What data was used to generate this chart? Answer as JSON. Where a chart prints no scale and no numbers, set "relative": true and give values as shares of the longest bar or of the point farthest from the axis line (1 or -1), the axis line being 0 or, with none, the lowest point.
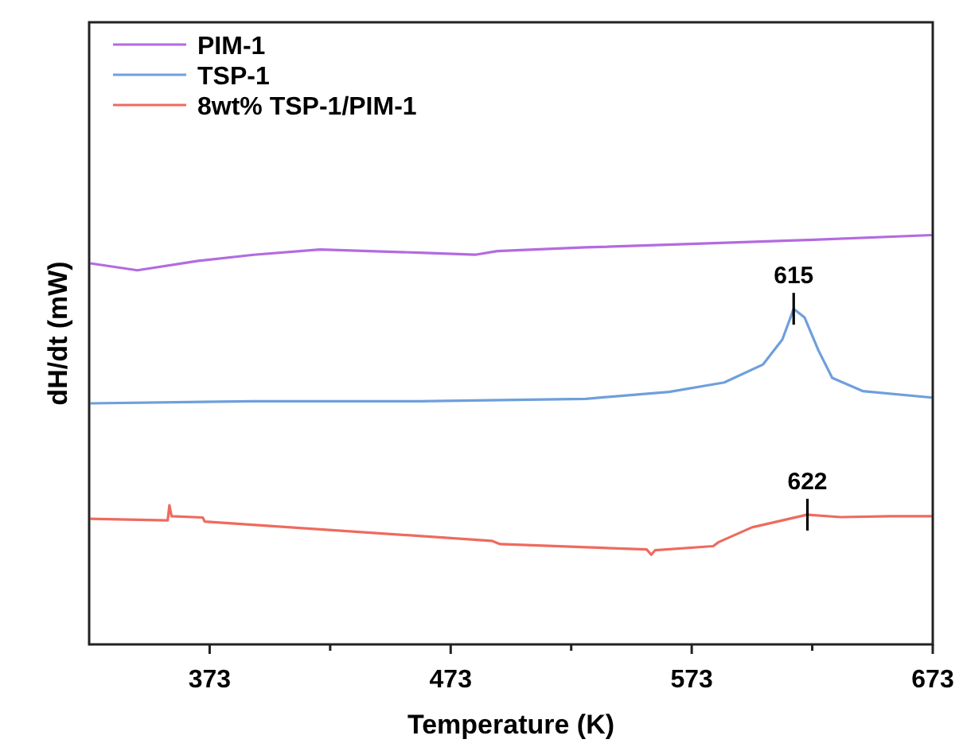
{
  "chart_data": {
    "type": "line",
    "xlabel": "Temperature (K)",
    "ylabel": "dH/dt (mW)",
    "relative": true,
    "xlim": [
      323,
      673
    ],
    "xticks": [
      373,
      {
        "value": 423,
        "label": null
      },
      473,
      {
        "value": 523,
        "label": null
      },
      573,
      {
        "value": 623,
        "label": null
      },
      673
    ],
    "legend": "top left",
    "grid": false,
    "marker": "none",
    "line_style": "solid",
    "series": [
      {
        "name": "PIM-1",
        "color": "#b36be0",
        "x": [
          323.5,
          343,
          368.3,
          391.3,
          418.8,
          460.1,
          483.1,
          492.3,
          529,
          575,
          621,
          672.6
        ],
        "values": [
          0.931,
          0.914,
          0.937,
          0.952,
          0.965,
          0.957,
          0.952,
          0.961,
          0.97,
          0.979,
          0.988,
          1
        ]
      },
      {
        "name": "TSP-1",
        "color": "#6f9fdc",
        "x": [
          323.5,
          391.3,
          460,
          529,
          563.6,
          586.5,
          602.6,
          610.6,
          615.3,
          619.8,
          625.6,
          631.3,
          643.9,
          672.6
        ],
        "values": [
          0.589,
          0.594,
          0.594,
          0.6,
          0.617,
          0.64,
          0.684,
          0.745,
          0.82,
          0.799,
          0.718,
          0.651,
          0.619,
          0.603
        ]
      },
      {
        "name": "8wt% TSP-1/PIM-1",
        "color": "#ef6a5e",
        "x": [
          323.5,
          355.6,
          356.3,
          357.2,
          370.1,
          371,
          490,
          493.5,
          554.3,
          556.2,
          557.8,
          581.9,
          584.2,
          598,
          621,
          634.8,
          655.5,
          672.6
        ],
        "values": [
          0.307,
          0.303,
          0.34,
          0.313,
          0.31,
          0.3,
          0.253,
          0.245,
          0.232,
          0.219,
          0.23,
          0.24,
          0.25,
          0.286,
          0.317,
          0.311,
          0.313,
          0.313
        ]
      }
    ],
    "annotations": [
      {
        "text": "615",
        "x": 615.3,
        "y": 0.82
      },
      {
        "text": "622",
        "x": 621,
        "y": 0.317
      }
    ]
  }
}
